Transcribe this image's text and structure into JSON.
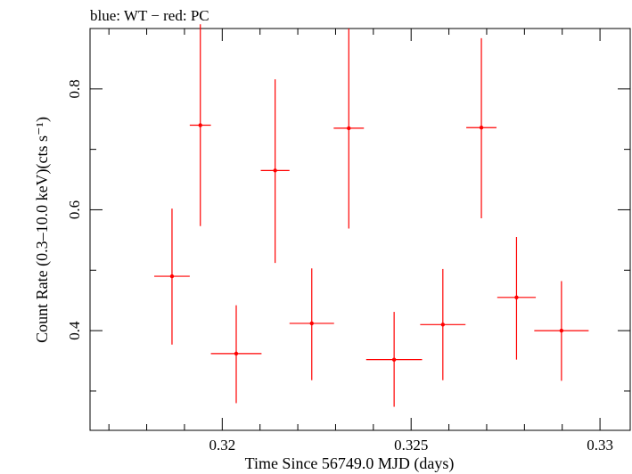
{
  "chart_data": {
    "type": "scatter",
    "title": "blue: WT − red: PC",
    "xlabel": "Time Since 56749.0 MJD (days)",
    "ylabel": "Count Rate (0.3–10.0 keV)(cts s⁻¹)",
    "xlim": [
      0.3165,
      0.3308
    ],
    "ylim": [
      0.235,
      0.9
    ],
    "x_ticks": [
      "0.32",
      "0.325",
      "0.33"
    ],
    "y_ticks": [
      "0.4",
      "0.6",
      "0.8"
    ],
    "grid": false,
    "series": [
      {
        "name": "PC",
        "color": "#ff0000",
        "points": [
          {
            "x": 0.31867,
            "y": 0.49,
            "xerr": 0.00047,
            "yerr_low": 0.113,
            "yerr_high": 0.112
          },
          {
            "x": 0.31942,
            "y": 0.74,
            "xerr": 0.00028,
            "yerr_low": 0.167,
            "yerr_high": 0.167
          },
          {
            "x": 0.32037,
            "y": 0.362,
            "xerr": 0.00067,
            "yerr_low": 0.082,
            "yerr_high": 0.08
          },
          {
            "x": 0.3214,
            "y": 0.665,
            "xerr": 0.00038,
            "yerr_low": 0.153,
            "yerr_high": 0.151
          },
          {
            "x": 0.32237,
            "y": 0.412,
            "xerr": 0.00059,
            "yerr_low": 0.094,
            "yerr_high": 0.091
          },
          {
            "x": 0.32335,
            "y": 0.735,
            "xerr": 0.0004,
            "yerr_low": 0.166,
            "yerr_high": 0.165
          },
          {
            "x": 0.32455,
            "y": 0.352,
            "xerr": 0.00074,
            "yerr_low": 0.078,
            "yerr_high": 0.079
          },
          {
            "x": 0.32584,
            "y": 0.41,
            "xerr": 0.0006,
            "yerr_low": 0.092,
            "yerr_high": 0.092
          },
          {
            "x": 0.32686,
            "y": 0.736,
            "xerr": 0.0004,
            "yerr_low": 0.15,
            "yerr_high": 0.148
          },
          {
            "x": 0.32779,
            "y": 0.455,
            "xerr": 0.00051,
            "yerr_low": 0.103,
            "yerr_high": 0.1
          },
          {
            "x": 0.32898,
            "y": 0.4,
            "xerr": 0.00072,
            "yerr_low": 0.083,
            "yerr_high": 0.082
          }
        ]
      }
    ]
  }
}
